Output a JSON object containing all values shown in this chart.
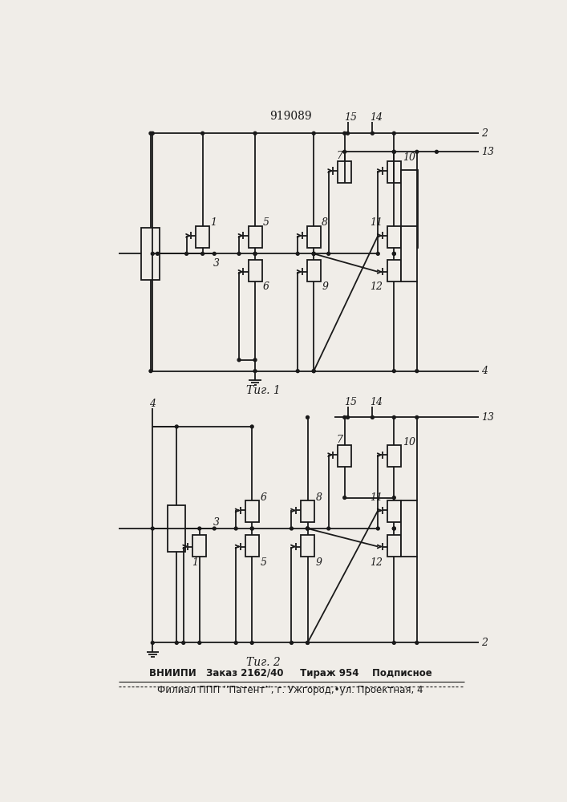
{
  "title": "919089",
  "fig1_label": "Τиг. 1",
  "fig2_label": "Τиг. 2",
  "bottom_text1": "ВНИИПИ   Заказ 2162/40     Тираж 954    Подписное",
  "bottom_text2": "Филиал ППП ’’Патент’’, г. Ужгород,•ул. Проектная, 4",
  "line_color": "#1a1a1a",
  "bg_color": "#f0ede8"
}
